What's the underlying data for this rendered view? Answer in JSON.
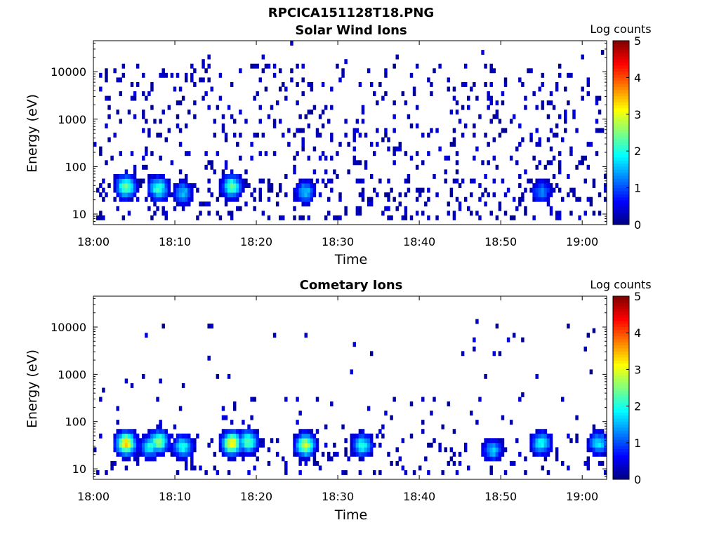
{
  "figure_title": "RPCICA151128T18.PNG",
  "panels": [
    {
      "title": "Solar Wind Ions",
      "xlabel": "Time",
      "ylabel": "Energy (eV)",
      "colorbar_label": "Log counts"
    },
    {
      "title": "Cometary Ions",
      "xlabel": "Time",
      "ylabel": "Energy (eV)",
      "colorbar_label": "Log counts"
    }
  ],
  "chart_data": [
    {
      "type": "heatmap",
      "title": "Solar Wind Ions",
      "xlabel": "Time",
      "ylabel": "Energy (eV)",
      "x_range": [
        "18:00",
        "19:03"
      ],
      "x_ticks": [
        "18:00",
        "18:10",
        "18:20",
        "18:30",
        "18:40",
        "18:50",
        "19:00"
      ],
      "y_scale": "log",
      "y_range": [
        6,
        45000
      ],
      "y_ticks": [
        10,
        100,
        1000,
        10000
      ],
      "y_tick_labels": [
        "10",
        "100",
        "1000",
        "10000"
      ],
      "colorbar": {
        "label": "Log counts",
        "range": [
          0,
          5
        ],
        "ticks": [
          "0",
          "1",
          "2",
          "3",
          "4",
          "5"
        ],
        "colormap": "jet"
      },
      "hotspots": [
        {
          "time": "18:04",
          "energy_eV": 38,
          "log_counts": 2.5
        },
        {
          "time": "18:08",
          "energy_eV": 35,
          "log_counts": 2.2
        },
        {
          "time": "18:11",
          "energy_eV": 28,
          "log_counts": 1.6
        },
        {
          "time": "18:17",
          "energy_eV": 38,
          "log_counts": 2.4
        },
        {
          "time": "18:26",
          "energy_eV": 30,
          "log_counts": 1.6
        },
        {
          "time": "18:55",
          "energy_eV": 30,
          "log_counts": 1.3
        }
      ],
      "background": "sparse single counts (log counts ~0–0.5) across 7–15000 eV"
    },
    {
      "type": "heatmap",
      "title": "Cometary Ions",
      "xlabel": "Time",
      "ylabel": "Energy (eV)",
      "x_range": [
        "18:00",
        "19:03"
      ],
      "x_ticks": [
        "18:00",
        "18:10",
        "18:20",
        "18:30",
        "18:40",
        "18:50",
        "19:00"
      ],
      "y_scale": "log",
      "y_range": [
        6,
        45000
      ],
      "y_ticks": [
        10,
        100,
        1000,
        10000
      ],
      "y_tick_labels": [
        "10",
        "100",
        "1000",
        "10000"
      ],
      "colorbar": {
        "label": "Log counts",
        "range": [
          0,
          5
        ],
        "ticks": [
          "0",
          "1",
          "2",
          "3",
          "4",
          "5"
        ],
        "colormap": "jet"
      },
      "hotspots": [
        {
          "time": "18:04",
          "energy_eV": 35,
          "log_counts": 3.4
        },
        {
          "time": "18:07",
          "energy_eV": 30,
          "log_counts": 2.0
        },
        {
          "time": "18:08",
          "energy_eV": 38,
          "log_counts": 2.6
        },
        {
          "time": "18:11",
          "energy_eV": 30,
          "log_counts": 2.0
        },
        {
          "time": "18:17",
          "energy_eV": 35,
          "log_counts": 3.3
        },
        {
          "time": "18:19",
          "energy_eV": 38,
          "log_counts": 2.4
        },
        {
          "time": "18:26",
          "energy_eV": 32,
          "log_counts": 2.9
        },
        {
          "time": "18:33",
          "energy_eV": 32,
          "log_counts": 2.0
        },
        {
          "time": "18:49",
          "energy_eV": 25,
          "log_counts": 1.6
        },
        {
          "time": "18:55",
          "energy_eV": 35,
          "log_counts": 2.0
        },
        {
          "time": "19:02",
          "energy_eV": 35,
          "log_counts": 1.8
        }
      ],
      "background": "sparse single counts above 100 eV, strongest activity 15–60 eV"
    }
  ]
}
